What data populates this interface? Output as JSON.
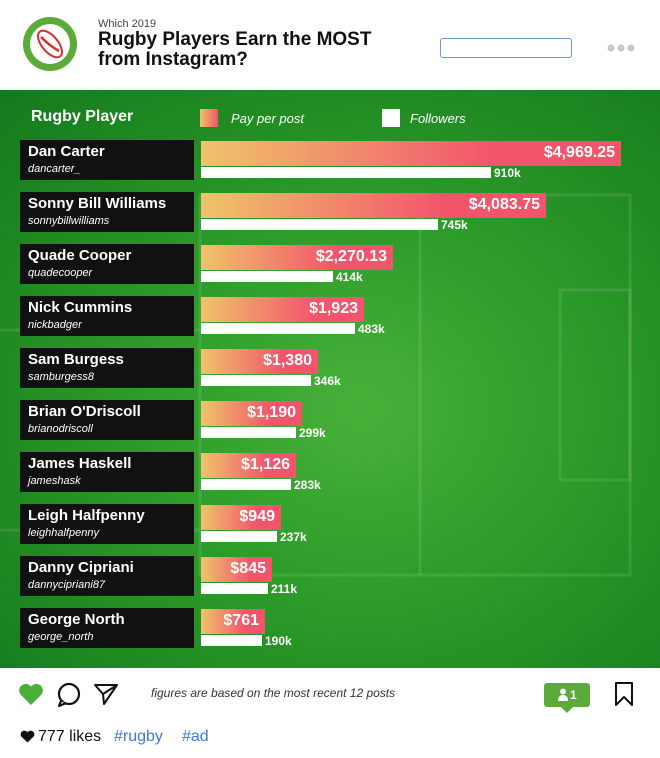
{
  "header": {
    "supertitle": "Which 2019",
    "title_line1": "Rugby Players Earn the MOST",
    "title_line2": "from Instagram?"
  },
  "legend": {
    "column_title": "Rugby Player",
    "pay_label": "Pay per post",
    "followers_label": "Followers"
  },
  "colors": {
    "pay_gradient_start": "#efc46a",
    "pay_gradient_end": "#f2546c",
    "background_green": "#2e9d2a",
    "accent_green": "#5aab3a",
    "hashtag_blue": "#3a7bd5"
  },
  "chart_data": {
    "type": "bar",
    "categories": [
      "Dan Carter",
      "Sonny Bill Williams",
      "Quade Cooper",
      "Nick Cummins",
      "Sam Burgess",
      "Brian O'Driscoll",
      "James Haskell",
      "Leigh Halfpenny",
      "Danny Cipriani",
      "George North"
    ],
    "handles": [
      "dancarter_",
      "sonnybillwilliams",
      "quadecooper",
      "nickbadger",
      "samburgess8",
      "brianodriscoll",
      "jameshask",
      "leighhalfpenny",
      "dannycipriani87",
      "george_north"
    ],
    "series": [
      {
        "name": "Pay per post",
        "values": [
          4969.25,
          4083.75,
          2270.13,
          1923,
          1380,
          1190,
          1126,
          949,
          845,
          761
        ],
        "labels": [
          "$4,969.25",
          "$4,083.75",
          "$2,270.13",
          "$1,923",
          "$1,380",
          "$1,190",
          "$1,126",
          "$949",
          "$845",
          "$761"
        ]
      },
      {
        "name": "Followers",
        "values": [
          910,
          745,
          414,
          483,
          346,
          299,
          283,
          237,
          211,
          190
        ],
        "labels": [
          "910k",
          "745k",
          "414k",
          "483k",
          "346k",
          "299k",
          "283k",
          "237k",
          "211k",
          "190k"
        ]
      }
    ]
  },
  "footer": {
    "footnote": "figures are based on the most recent 12 posts",
    "follower_badge_count": "1",
    "likes": "777 likes",
    "hashtag1": "#rugby",
    "hashtag2": "#ad"
  },
  "icons": [
    "rugby-ball-logo-icon",
    "more-icon",
    "heart-icon",
    "comment-icon",
    "share-icon",
    "user-icon",
    "bookmark-icon"
  ]
}
